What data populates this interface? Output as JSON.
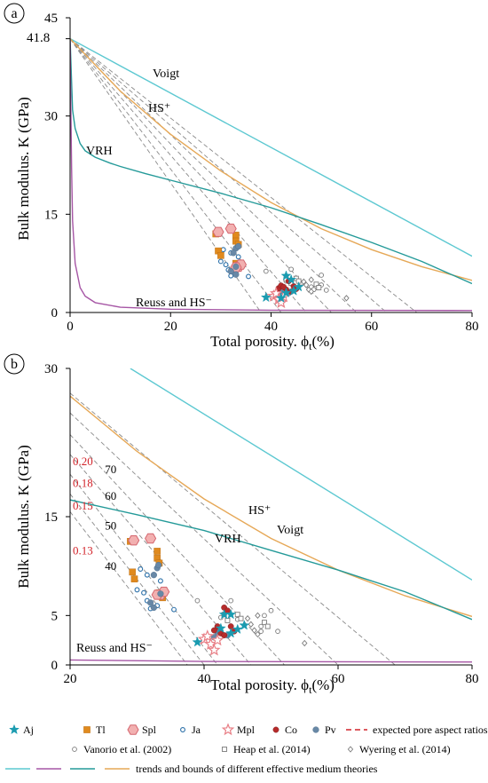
{
  "chart_data": [
    {
      "panel": "a",
      "type": "scatter",
      "xlabel_main": "Total porosity. ϕ",
      "xlabel_sub": "t",
      "xlabel_unit": "(%)",
      "ylabel": "Bulk modulus. K (GPa)",
      "xlim": [
        0,
        80
      ],
      "ylim": [
        0,
        45
      ],
      "xticks": [
        0,
        20,
        40,
        60,
        80
      ],
      "yticks": [
        0,
        15,
        30,
        45
      ],
      "extra_ytick": 41.8,
      "extra_ytick_label": "41.8",
      "curve_labels": {
        "voigt": "Voigt",
        "hs_plus": "HS⁺",
        "vrh": "VRH",
        "reuss": "Reuss and HS⁻"
      },
      "curves": [
        {
          "id": "voigt",
          "x": [
            0,
            80
          ],
          "y": [
            41.8,
            8.6
          ]
        },
        {
          "id": "hs_plus",
          "x": [
            0,
            10,
            20,
            30,
            40,
            50,
            60,
            70,
            80
          ],
          "y": [
            41.8,
            33.8,
            27.2,
            21.6,
            16.8,
            12.8,
            9.6,
            7.0,
            4.9
          ]
        },
        {
          "id": "vrh",
          "x": [
            0,
            0.5,
            1,
            2,
            3,
            5,
            8,
            10,
            15,
            20,
            30,
            40,
            50,
            60,
            70,
            80
          ],
          "y": [
            41.8,
            30.9,
            28.1,
            25.8,
            24.7,
            23.7,
            22.8,
            22.3,
            21.2,
            20.2,
            18.2,
            16.0,
            13.4,
            10.7,
            7.8,
            4.4
          ]
        },
        {
          "id": "reuss",
          "x": [
            0,
            0.1,
            0.3,
            0.5,
            1,
            2,
            3,
            5,
            10,
            20,
            40,
            80
          ],
          "y": [
            41.8,
            34.0,
            22.0,
            14.0,
            7.5,
            3.8,
            2.5,
            1.5,
            0.8,
            0.5,
            0.35,
            0.3
          ]
        }
      ],
      "ar_lines": [
        {
          "x0": 0,
          "y0": 41.8,
          "x1": 38,
          "y1": 0
        },
        {
          "x0": 0,
          "y0": 41.8,
          "x1": 42,
          "y1": 0
        },
        {
          "x0": 0,
          "y0": 41.8,
          "x1": 47,
          "y1": 0
        },
        {
          "x0": 0,
          "y0": 41.8,
          "x1": 52,
          "y1": 0
        },
        {
          "x0": 0,
          "y0": 41.8,
          "x1": 57,
          "y1": 0
        },
        {
          "x0": 0,
          "y0": 41.8,
          "x1": 63,
          "y1": 0
        },
        {
          "x0": 0,
          "y0": 41.8,
          "x1": 69,
          "y1": 0
        }
      ],
      "series": [
        {
          "id": "Aj",
          "points": [
            [
              39.0,
              2.3
            ],
            [
              43.0,
              5.6
            ],
            [
              44.0,
              5.0
            ],
            [
              43.0,
              3.0
            ],
            [
              44.5,
              3.3
            ],
            [
              45.5,
              3.9
            ],
            [
              42.0,
              2.2
            ]
          ]
        },
        {
          "id": "Tl",
          "points": [
            [
              29.0,
              12.0
            ],
            [
              29.5,
              9.4
            ],
            [
              30.0,
              8.7
            ],
            [
              33.0,
              11.8
            ],
            [
              33.0,
              10.9
            ],
            [
              33.5,
              10.4
            ],
            [
              33.0,
              7.5
            ],
            [
              33.5,
              6.8
            ]
          ]
        },
        {
          "id": "Spl",
          "points": [
            [
              29.5,
              12.3
            ],
            [
              32.0,
              12.8
            ],
            [
              33.5,
              7.0
            ],
            [
              34.0,
              7.3
            ],
            [
              33.0,
              6.9
            ]
          ]
        },
        {
          "id": "Ja",
          "points": [
            [
              30.0,
              7.8
            ],
            [
              31.0,
              7.3
            ],
            [
              31.5,
              6.5
            ],
            [
              32.0,
              5.6
            ],
            [
              33.0,
              6.0
            ],
            [
              34.0,
              7.0
            ],
            [
              35.5,
              5.5
            ],
            [
              30.5,
              9.6
            ],
            [
              32.0,
              9.1
            ],
            [
              33.5,
              8.5
            ]
          ]
        },
        {
          "id": "Mpl",
          "points": [
            [
              40.5,
              2.5
            ],
            [
              41.0,
              2.9
            ],
            [
              41.5,
              2.0
            ],
            [
              42.0,
              1.5
            ],
            [
              42.5,
              2.4
            ]
          ]
        },
        {
          "id": "Co",
          "points": [
            [
              41.5,
              3.7
            ],
            [
              42.0,
              4.1
            ],
            [
              43.0,
              3.5
            ],
            [
              44.0,
              3.2
            ],
            [
              43.5,
              4.8
            ],
            [
              44.5,
              4.0
            ],
            [
              45.0,
              3.6
            ],
            [
              42.5,
              3.9
            ]
          ]
        },
        {
          "id": "Pv",
          "points": [
            [
              32.0,
              6.3
            ],
            [
              33.0,
              5.8
            ],
            [
              33.0,
              9.8
            ],
            [
              33.5,
              10.1
            ],
            [
              33.0,
              7.0
            ],
            [
              32.5,
              9.1
            ],
            [
              41.5,
              3.0
            ],
            [
              42.0,
              3.3
            ],
            [
              43.5,
              3.0
            ]
          ]
        },
        {
          "id": "Vanorio",
          "points": [
            [
              39.0,
              6.3
            ],
            [
              43.0,
              4.8
            ],
            [
              46.0,
              4.5
            ],
            [
              48.0,
              3.9
            ],
            [
              48.5,
              3.5
            ],
            [
              50.0,
              4.2
            ],
            [
              51.0,
              3.4
            ],
            [
              50.0,
              5.7
            ],
            [
              44.0,
              6.6
            ]
          ]
        },
        {
          "id": "Heap",
          "points": [
            [
              43.0,
              5.1
            ],
            [
              44.0,
              4.5
            ],
            [
              45.0,
              5.2
            ],
            [
              45.5,
              4.8
            ],
            [
              49.0,
              4.3
            ],
            [
              49.5,
              3.8
            ]
          ]
        },
        {
          "id": "Wyering",
          "points": [
            [
              46.5,
              4.7
            ],
            [
              47.0,
              4.2
            ],
            [
              47.5,
              3.5
            ],
            [
              48.0,
              5.0
            ],
            [
              48.0,
              3.2
            ],
            [
              55.0,
              2.2
            ]
          ]
        }
      ]
    },
    {
      "panel": "b",
      "type": "scatter",
      "xlabel_main": "Total porosity. ϕ",
      "xlabel_sub": "t",
      "xlabel_unit": "(%)",
      "ylabel": "Bulk modulus. K (GPa)",
      "xlim": [
        20,
        80
      ],
      "ylim": [
        0,
        30
      ],
      "xticks": [
        20,
        40,
        60,
        80
      ],
      "yticks": [
        0,
        5,
        15,
        30
      ],
      "curve_labels": {
        "voigt": "Voigt",
        "hs_plus": "HS⁺",
        "vrh": "VRH",
        "reuss": "Reuss and HS⁻"
      },
      "curves": [
        {
          "id": "voigt",
          "x": [
            29,
            80
          ],
          "y": [
            30,
            8.6
          ]
        },
        {
          "id": "hs_plus",
          "x": [
            20,
            30,
            40,
            50,
            60,
            70,
            80
          ],
          "y": [
            27.2,
            21.6,
            16.8,
            12.8,
            9.6,
            7.0,
            4.9
          ]
        },
        {
          "id": "vrh",
          "x": [
            20,
            30,
            40,
            50,
            60,
            70,
            80
          ],
          "y": [
            16.7,
            15.2,
            13.6,
            11.6,
            9.6,
            7.4,
            4.6
          ]
        },
        {
          "id": "reuss",
          "x": [
            20,
            40,
            80
          ],
          "y": [
            0.5,
            0.35,
            0.3
          ]
        }
      ],
      "ar_lines": [
        {
          "x0": 20,
          "y0": 15.5,
          "x1": 37.5,
          "y1": 0
        },
        {
          "x0": 20,
          "y0": 17.3,
          "x1": 40.0,
          "y1": 0
        },
        {
          "x0": 20,
          "y0": 19.3,
          "x1": 42.0,
          "y1": 0
        },
        {
          "x0": 20,
          "y0": 21.3,
          "x1": 47.0,
          "y1": 0
        },
        {
          "x0": 20,
          "y0": 23.3,
          "x1": 52.0,
          "y1": 0
        },
        {
          "x0": 20,
          "y0": 25.5,
          "x1": 60.0,
          "y1": 0
        },
        {
          "x0": 20,
          "y0": 27.5,
          "x1": 68.5,
          "y1": 0
        }
      ],
      "ar_labels_red": [
        {
          "text": "0.20",
          "x": 20.4,
          "y": 20.2
        },
        {
          "text": "0.18",
          "x": 20.4,
          "y": 18.0
        },
        {
          "text": "0.15",
          "x": 20.4,
          "y": 15.7
        },
        {
          "text": "0.13",
          "x": 20.4,
          "y": 11.2
        }
      ],
      "ar_labels_black": [
        {
          "text": "70",
          "x": 25.2,
          "y": 19.4
        },
        {
          "text": "60",
          "x": 25.2,
          "y": 16.7
        },
        {
          "text": "50",
          "x": 25.2,
          "y": 13.7
        },
        {
          "text": "40",
          "x": 25.2,
          "y": 9.6
        }
      ],
      "series": [
        {
          "id": "Aj",
          "points": [
            [
              39.0,
              2.3
            ],
            [
              42.5,
              3.7
            ],
            [
              43.0,
              5.1
            ],
            [
              44.0,
              5.1
            ],
            [
              44.0,
              3.2
            ],
            [
              45.0,
              3.6
            ],
            [
              46.0,
              4.0
            ]
          ]
        },
        {
          "id": "Tl",
          "points": [
            [
              29.0,
              12.5
            ],
            [
              29.3,
              9.4
            ],
            [
              29.6,
              8.7
            ],
            [
              33.0,
              11.5
            ],
            [
              33.0,
              10.8
            ],
            [
              33.3,
              10.3
            ],
            [
              33.3,
              7.3
            ],
            [
              33.8,
              6.8
            ]
          ]
        },
        {
          "id": "Spl",
          "points": [
            [
              29.5,
              12.6
            ],
            [
              32.0,
              12.8
            ],
            [
              33.5,
              7.1
            ],
            [
              34.0,
              7.4
            ],
            [
              33.0,
              7.1
            ]
          ]
        },
        {
          "id": "Ja",
          "points": [
            [
              30.0,
              7.6
            ],
            [
              31.0,
              7.3
            ],
            [
              31.5,
              6.5
            ],
            [
              32.0,
              5.7
            ],
            [
              33.0,
              6.0
            ],
            [
              34.0,
              7.1
            ],
            [
              35.5,
              5.6
            ],
            [
              30.5,
              9.7
            ],
            [
              31.5,
              9.1
            ],
            [
              33.5,
              8.5
            ]
          ]
        },
        {
          "id": "Mpl",
          "points": [
            [
              40.0,
              2.6
            ],
            [
              40.5,
              2.9
            ],
            [
              41.0,
              2.1
            ],
            [
              41.5,
              1.5
            ],
            [
              42.0,
              2.5
            ]
          ]
        },
        {
          "id": "Co",
          "points": [
            [
              41.5,
              3.5
            ],
            [
              42.0,
              3.9
            ],
            [
              42.5,
              3.2
            ],
            [
              43.0,
              3.0
            ],
            [
              43.0,
              5.8
            ],
            [
              43.5,
              5.5
            ],
            [
              44.5,
              3.4
            ],
            [
              44.0,
              3.9
            ]
          ]
        },
        {
          "id": "Pv",
          "points": [
            [
              32.0,
              6.3
            ],
            [
              32.5,
              5.8
            ],
            [
              33.0,
              9.8
            ],
            [
              33.2,
              10.1
            ],
            [
              33.5,
              7.2
            ],
            [
              32.5,
              9.1
            ],
            [
              41.5,
              2.8
            ],
            [
              42.0,
              3.3
            ],
            [
              43.5,
              3.0
            ]
          ]
        },
        {
          "id": "Vanorio",
          "points": [
            [
              39.0,
              6.5
            ],
            [
              42.5,
              4.8
            ],
            [
              45.0,
              4.6
            ],
            [
              48.5,
              3.9
            ],
            [
              48.5,
              3.4
            ],
            [
              49.0,
              5.0
            ],
            [
              51.0,
              3.4
            ],
            [
              50.0,
              5.5
            ],
            [
              44.0,
              6.5
            ]
          ]
        },
        {
          "id": "Heap",
          "points": [
            [
              43.0,
              5.1
            ],
            [
              43.5,
              4.5
            ],
            [
              45.0,
              5.1
            ],
            [
              45.5,
              4.7
            ],
            [
              49.0,
              4.3
            ],
            [
              49.5,
              3.9
            ]
          ]
        },
        {
          "id": "Wyering",
          "points": [
            [
              46.5,
              4.7
            ],
            [
              47.0,
              4.1
            ],
            [
              47.5,
              3.5
            ],
            [
              48.0,
              5.0
            ],
            [
              48.0,
              3.1
            ],
            [
              55.0,
              2.2
            ]
          ]
        }
      ]
    }
  ],
  "panel_labels": [
    "a",
    "b"
  ],
  "legend": {
    "row1": [
      {
        "id": "Aj",
        "label": "Aj"
      },
      {
        "id": "Tl",
        "label": "Tl"
      },
      {
        "id": "Spl",
        "label": "Spl"
      },
      {
        "id": "Ja",
        "label": "Ja"
      },
      {
        "id": "Mpl",
        "label": "Mpl"
      },
      {
        "id": "Co",
        "label": "Co"
      },
      {
        "id": "Pv",
        "label": "Pv"
      },
      {
        "id": "AR",
        "label": "expected pore aspect ratios (AR)"
      }
    ],
    "row2": [
      {
        "id": "Vanorio",
        "label": "Vanorio et al. (2002)"
      },
      {
        "id": "Heap",
        "label": "Heap et al. (2014)"
      },
      {
        "id": "Wyering",
        "label": "Wyering et al. (2014)"
      }
    ],
    "row3_label": "trends and bounds of different effective medium theories"
  },
  "colors": {
    "voigt": "#5cc8d1",
    "hs_plus": "#e6a857",
    "vrh": "#249a99",
    "reuss": "#a656a5",
    "ar_line": "#8a8a8a",
    "ar_red": "#d2232a",
    "Aj": "#1a9bb0",
    "Tl": "#e08a1e",
    "Spl_fill": "#f2b0b0",
    "Spl_stroke": "#d4666f",
    "Ja": "#2a6fa8",
    "Mpl": "#e87f86",
    "Co": "#b62b2b",
    "Pv": "#6888a6",
    "open": "#7a7a7a"
  }
}
